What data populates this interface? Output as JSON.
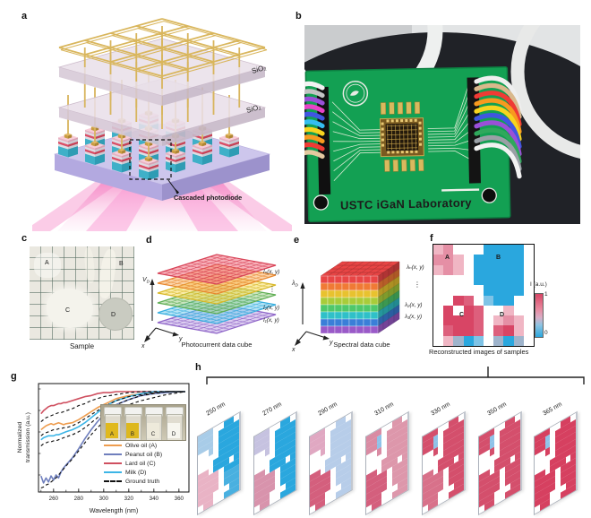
{
  "panels": {
    "a": {
      "label": "a",
      "sio2_upper": "SiO₂",
      "sio2_lower": "SiO₂",
      "annotation": "Cascaded photodiode"
    },
    "b": {
      "label": "b",
      "board_text": "USTC iGaN Laboratory",
      "wire_colors_left": [
        "#f2f2f2",
        "#c4c4c4",
        "#9a50d8",
        "#e843c8",
        "#4056e0",
        "#35bdf0",
        "#f7d41f",
        "#f79a1f",
        "#ef3b34",
        "#e4c9a0"
      ],
      "wire_colors_right": [
        "#efefef",
        "#d9b98c",
        "#ef3b34",
        "#f79a1f",
        "#f7d41f",
        "#4056e0",
        "#9a50d8",
        "#2fa85c",
        "#9aa0a6",
        "#f2f2f2"
      ]
    },
    "c": {
      "label": "c",
      "caption": "Sample",
      "markers": [
        "A",
        "B",
        "C",
        "D"
      ]
    },
    "d": {
      "label": "d",
      "caption": "Photocurrent data cube",
      "axis": {
        "base": "V",
        "sub": "D"
      },
      "axis_x": "x",
      "axis_y": "y",
      "layer_labels": {
        "top": "Iₙ(x, y)",
        "dots": "⋮",
        "mid": "I₂(x, y)",
        "bottom": "I₁(x, y)"
      },
      "layer_label_colors": {
        "top": "#e84558",
        "mid": "#2aa7de",
        "bottom": "#9a5ac8"
      },
      "plane_colors": [
        {
          "fill": "#c0a4e4",
          "stroke": "#8f66c8"
        },
        {
          "fill": "#7ed0ee",
          "stroke": "#38aede"
        },
        {
          "fill": "#9ed08c",
          "stroke": "#5fae54"
        },
        {
          "fill": "#f6dc60",
          "stroke": "#d8b828"
        },
        {
          "fill": "#f8b062",
          "stroke": "#e88830"
        },
        {
          "fill": "#f07080",
          "stroke": "#d84458"
        }
      ]
    },
    "e": {
      "label": "e",
      "caption": "Spectral data cube",
      "axis": {
        "base": "λ",
        "sub": "D"
      },
      "axis_x": "x",
      "axis_y": "y",
      "layer_labels": {
        "top": "λₙ(x, y)",
        "dots": "⋮",
        "mid": "λ₂(x, y)",
        "bottom": "λ₁(x, y)"
      },
      "layer_label_colors": {
        "top": "#e84558",
        "mid": "#2aa7de",
        "bottom": "#9a5ac8"
      },
      "row_colors": [
        "#e84545",
        "#f07a35",
        "#e8c22f",
        "#a8cc3a",
        "#4fc86a",
        "#2fc0c8",
        "#3a7fd8",
        "#9a5ac8"
      ]
    },
    "f": {
      "label": "f",
      "caption": "Reconstructed images of samples",
      "markers": [
        "A",
        "B",
        "C",
        "D"
      ],
      "colorbar": {
        "title": "I (a.u.)",
        "max": "1",
        "min": "0"
      },
      "palette": {
        ".": "#ffffff",
        "a": "#f0b6c4",
        "A": "#e58fa5",
        "r": "#dd5f7c",
        "R": "#d84565",
        "b": "#2aa7de",
        "l": "#7fc3e6",
        "g": "#9fb4cc"
      },
      "rows": [
        "aA...bbbb.",
        "AAa.bbbbb.",
        "aAa.bbbbb.",
        "....bbbbb.",
        ".....bbbb.",
        "..Rr.lbb..",
        ".R.Rr..a..",
        ".RRRr.aAa.",
        ".rRRr.rRa.",
        ".agbl.gbg."
      ]
    },
    "g": {
      "label": "g",
      "xlabel": "Wavelength (nm)",
      "ylabel_line1": "Normalized",
      "ylabel_line2": "transmission (a.u.)",
      "xticks": [
        260,
        280,
        300,
        320,
        340,
        360
      ],
      "legend": [
        {
          "label": "Olive oil (A)",
          "color": "#ee9d4f",
          "dash": false
        },
        {
          "label": "Peanut oil (B)",
          "color": "#6f7fbd",
          "dash": false
        },
        {
          "label": "Lard oil (C)",
          "color": "#cf5060",
          "dash": false
        },
        {
          "label": "Milk (D)",
          "color": "#3db5e6",
          "dash": false
        },
        {
          "label": "Ground truth",
          "color": "#111111",
          "dash": true
        }
      ],
      "inset": {
        "markers": [
          "A",
          "B",
          "C",
          "D"
        ],
        "liquids": [
          "#e0b91e",
          "#ddb81e",
          "#eeeadb",
          "#f7f6ef"
        ]
      }
    },
    "h": {
      "label": "h",
      "mask": [
        "AAA..BB.",
        "AAA.BBBB",
        "AAA.BBBB",
        "..A.BBBB",
        "....BBBB",
        "...BBBBB",
        "CC.BBB.B",
        "CCCC.BBB",
        "CCCC.DDD",
        "CCCC.DDD",
        "CCC...DD",
        ".CC..DDD"
      ],
      "tiles": [
        {
          "wavelength": "250 nm",
          "A": "#a8cce8",
          "B": "#2aa7de",
          "C": "#e9b3c5",
          "D": "#49b0e0",
          "accent": null
        },
        {
          "wavelength": "270 nm",
          "A": "#c6c2e0",
          "B": "#2aa7de",
          "C": "#d893ac",
          "D": "#2aa7de",
          "accent": null
        },
        {
          "wavelength": "290 nm",
          "A": "#e0a8c2",
          "B": "#b7cde9",
          "C": "#d45f7d",
          "D": "#b7cde9",
          "accent": null
        },
        {
          "wavelength": "310 nm",
          "A": "#d98ba3",
          "B": "#dd97ab",
          "C": "#d45f7d",
          "D": "#dd97ab",
          "accent": "#8fc2e8"
        },
        {
          "wavelength": "330 nm",
          "A": "#d44f6c",
          "B": "#d44f6c",
          "C": "#d8718a",
          "D": "#d44f6c",
          "accent": "#8fc2e8"
        },
        {
          "wavelength": "350 nm",
          "A": "#d44f6c",
          "B": "#d44f6c",
          "C": "#d44f6c",
          "D": "#d44f6c",
          "accent": "#8fc2e8"
        },
        {
          "wavelength": "365 nm",
          "A": "#d64060",
          "B": "#d64060",
          "C": "#d64060",
          "D": "#d64060",
          "accent": "#8fc2e8"
        }
      ]
    }
  },
  "chart_data": {
    "type": "line",
    "xlabel": "Wavelength (nm)",
    "ylabel": "Normalized transmission (a.u.)",
    "xlim": [
      248,
      368
    ],
    "ylim": [
      0,
      1.08
    ],
    "grid": false,
    "legend_position": "lower right",
    "x": [
      250,
      252,
      254,
      256,
      258,
      260,
      262,
      264,
      266,
      268,
      270,
      275,
      280,
      285,
      290,
      295,
      300,
      305,
      310,
      320,
      330,
      340,
      350,
      360,
      365
    ],
    "series": [
      {
        "name": "Olive oil (A)",
        "color": "#ee9d4f",
        "dash": false,
        "values": [
          0.62,
          0.64,
          0.66,
          0.67,
          0.68,
          0.67,
          0.68,
          0.69,
          0.68,
          0.67,
          0.68,
          0.69,
          0.72,
          0.76,
          0.8,
          0.84,
          0.87,
          0.9,
          0.93,
          0.96,
          0.98,
          0.99,
          1.0,
          1.0,
          1.0
        ]
      },
      {
        "name": "Peanut oil (B)",
        "color": "#6f7fbd",
        "dash": false,
        "values": [
          0.16,
          0.09,
          0.14,
          0.1,
          0.16,
          0.12,
          0.17,
          0.14,
          0.2,
          0.24,
          0.27,
          0.34,
          0.43,
          0.53,
          0.62,
          0.7,
          0.77,
          0.83,
          0.87,
          0.92,
          0.96,
          0.98,
          0.99,
          1.0,
          1.0
        ]
      },
      {
        "name": "Lard oil (C)",
        "color": "#cf5060",
        "dash": false,
        "values": [
          0.78,
          0.81,
          0.83,
          0.85,
          0.86,
          0.86,
          0.87,
          0.88,
          0.88,
          0.89,
          0.89,
          0.91,
          0.93,
          0.95,
          0.96,
          0.98,
          0.99,
          0.99,
          1.0,
          1.0,
          1.0,
          1.0,
          1.0,
          1.0,
          1.0
        ]
      },
      {
        "name": "Milk (D)",
        "color": "#3db5e6",
        "dash": false,
        "values": [
          0.52,
          0.54,
          0.55,
          0.56,
          0.56,
          0.56,
          0.57,
          0.57,
          0.58,
          0.59,
          0.6,
          0.62,
          0.65,
          0.69,
          0.74,
          0.79,
          0.84,
          0.88,
          0.91,
          0.95,
          0.98,
          1.0,
          1.0,
          1.0,
          1.0
        ]
      },
      {
        "name": "Ground truth (A)",
        "color": "#111111",
        "dash": true,
        "values": [
          0.56,
          0.58,
          0.59,
          0.6,
          0.61,
          0.62,
          0.62,
          0.63,
          0.63,
          0.64,
          0.64,
          0.66,
          0.69,
          0.73,
          0.77,
          0.81,
          0.85,
          0.88,
          0.91,
          0.95,
          0.97,
          0.99,
          1.0,
          1.0,
          1.0
        ]
      },
      {
        "name": "Ground truth (B)",
        "color": "#111111",
        "dash": true,
        "values": [
          0.04,
          0.05,
          0.07,
          0.08,
          0.1,
          0.12,
          0.14,
          0.17,
          0.2,
          0.23,
          0.26,
          0.33,
          0.41,
          0.49,
          0.57,
          0.64,
          0.7,
          0.76,
          0.8,
          0.87,
          0.91,
          0.94,
          0.97,
          0.99,
          1.0
        ]
      },
      {
        "name": "Ground truth (C)",
        "color": "#111111",
        "dash": true,
        "values": [
          0.7,
          0.72,
          0.74,
          0.75,
          0.76,
          0.77,
          0.78,
          0.79,
          0.79,
          0.8,
          0.81,
          0.83,
          0.86,
          0.88,
          0.91,
          0.93,
          0.95,
          0.96,
          0.97,
          0.99,
          1.0,
          1.0,
          1.0,
          1.0,
          1.0
        ]
      },
      {
        "name": "Ground truth (D)",
        "color": "#111111",
        "dash": true,
        "values": [
          0.46,
          0.48,
          0.49,
          0.5,
          0.5,
          0.51,
          0.51,
          0.52,
          0.53,
          0.54,
          0.55,
          0.57,
          0.6,
          0.64,
          0.69,
          0.74,
          0.79,
          0.83,
          0.87,
          0.92,
          0.96,
          0.98,
          1.0,
          1.0,
          1.0
        ]
      }
    ]
  }
}
